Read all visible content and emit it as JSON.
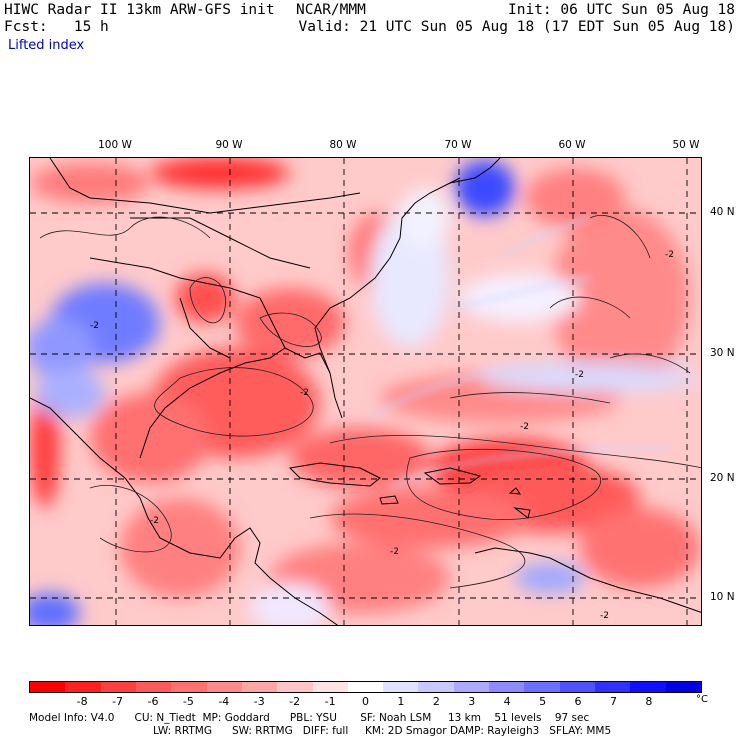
{
  "header": {
    "model_title": "HIWC Radar II 13km ARW-GFS init",
    "source": "NCAR/MMM",
    "init": "Init: 06 UTC Sun 05 Aug 18",
    "forecast": "Fcst:   15 h",
    "valid": "Valid: 21 UTC Sun 05 Aug 18 (17 EDT Sun 05 Aug 18)",
    "field": "Lifted index"
  },
  "map": {
    "longitude_labels": [
      "100 W",
      "90 W",
      "80 W",
      "70 W",
      "60 W",
      "50 W"
    ],
    "latitude_labels": [
      "40 N",
      "30 N",
      "20 N",
      "10 N"
    ],
    "contour_labels": [
      "-2",
      "-2",
      "-2",
      "-2",
      "-2",
      "-2",
      "-2",
      "-2"
    ]
  },
  "colorbar": {
    "tick_labels": [
      "-8",
      "-7",
      "-6",
      "-5",
      "-4",
      "-3",
      "-2",
      "-1",
      "0",
      "1",
      "2",
      "3",
      "4",
      "5",
      "6",
      "7",
      "8"
    ],
    "unit": "°C",
    "colors": [
      "#ff0000",
      "#ff2020",
      "#ff4040",
      "#ff5a5a",
      "#ff7070",
      "#ff8a8a",
      "#ffa5a5",
      "#ffc5c5",
      "#ffe2e2",
      "#ffffff",
      "#e2e2ff",
      "#c8c8ff",
      "#aaaaff",
      "#8c8cff",
      "#6e6eff",
      "#5050ff",
      "#3030ff",
      "#1010ff",
      "#0000e6"
    ]
  },
  "footer": {
    "line1": "Model Info: V4.0      CU: N_Tiedt  MP: Goddard      PBL: YSU       SF: Noah LSM     13 km    51 levels    97 sec",
    "line2": "LW: RRTMG      SW: RRTMG   DIFF: full     KM: 2D Smagor DAMP: Rayleigh3   SFLAY: MM5"
  }
}
